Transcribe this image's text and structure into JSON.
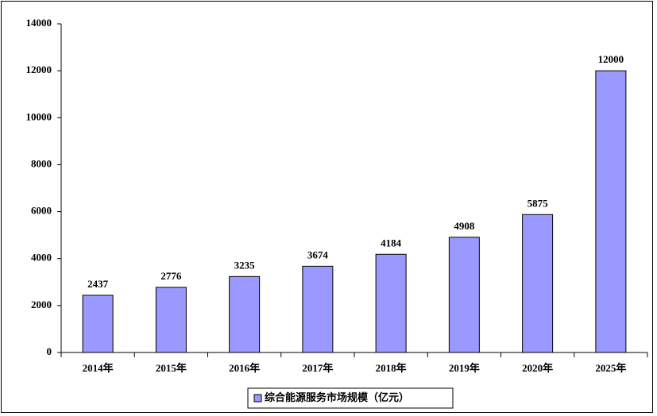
{
  "chart_data": {
    "type": "bar",
    "categories": [
      "2014年",
      "2015年",
      "2016年",
      "2017年",
      "2018年",
      "2019年",
      "2020年",
      "2025年"
    ],
    "series": [
      {
        "name": "综合能源服务市场规模（亿元）",
        "color": "#9999ff",
        "values": [
          2437,
          2776,
          3235,
          3674,
          4184,
          4908,
          5875,
          12000
        ]
      }
    ],
    "ylim": [
      0,
      14000
    ],
    "yticks": [
      0,
      2000,
      4000,
      6000,
      8000,
      10000,
      12000,
      14000
    ],
    "grid": false,
    "legend": "bottom"
  }
}
